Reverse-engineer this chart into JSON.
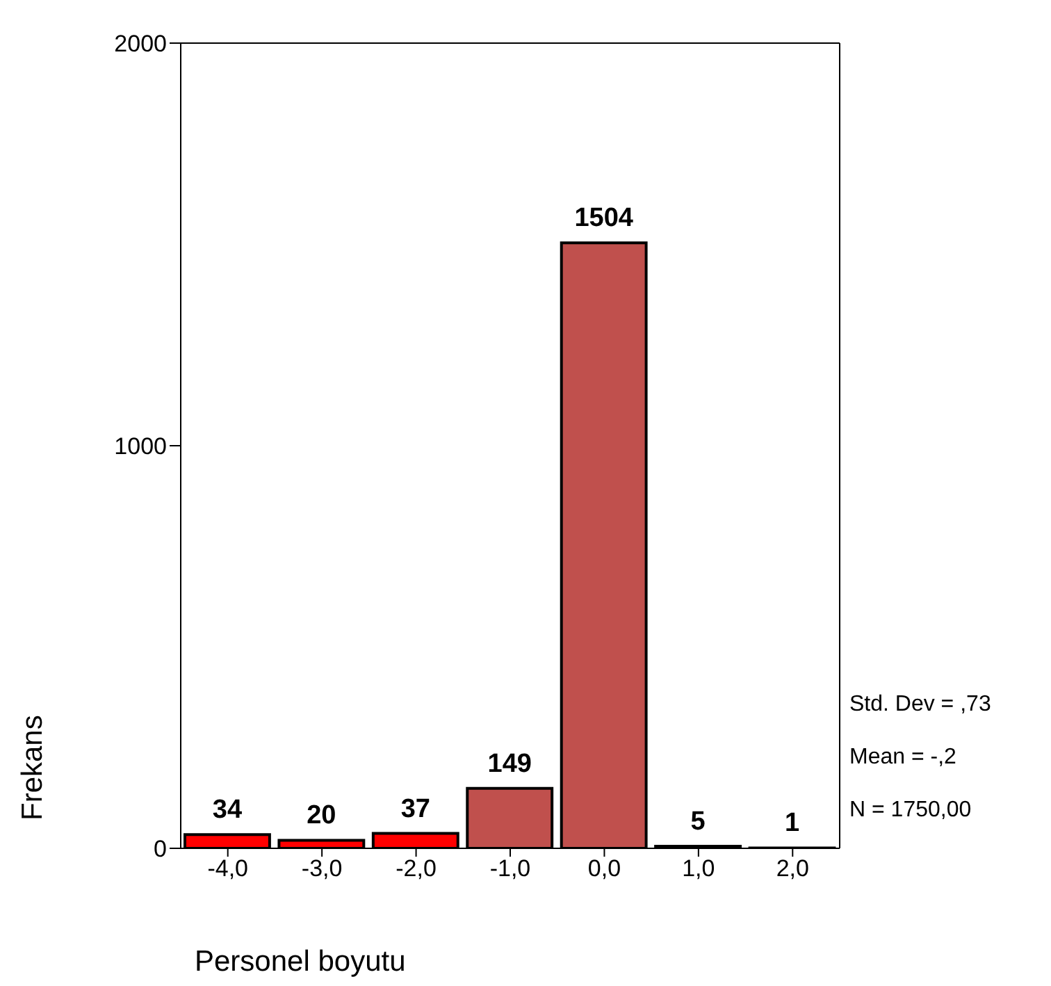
{
  "chart_data": {
    "type": "histogram",
    "xlabel": "Personel boyutu",
    "ylabel": "Frekans",
    "bins": [
      -4.5,
      -3.5,
      -2.5,
      -1.5,
      -0.5,
      0.5,
      1.5,
      2.5
    ],
    "values": [
      34,
      20,
      37,
      149,
      1504,
      5,
      1
    ],
    "colors": [
      "#ff0000",
      "#ff0000",
      "#ff0000",
      "#c0504d",
      "#c0504d",
      "#c0504d",
      "#c0504d"
    ],
    "xlim": [
      -4.5,
      2.5
    ],
    "xticks": [
      {
        "value": -4,
        "label": "-4,0"
      },
      {
        "value": -3,
        "label": "-3,0"
      },
      {
        "value": -2,
        "label": "-2,0"
      },
      {
        "value": -1,
        "label": "-1,0"
      },
      {
        "value": 0,
        "label": "0,0"
      },
      {
        "value": 1,
        "label": "1,0"
      },
      {
        "value": 2,
        "label": "2,0"
      }
    ],
    "ylim": [
      0,
      2000
    ],
    "yticks": [
      0,
      1000,
      2000
    ],
    "grid": false,
    "data_labels": true,
    "annotations": [
      "Std. Dev = ,73",
      "Mean = -,2",
      "N = 1750,00"
    ]
  }
}
